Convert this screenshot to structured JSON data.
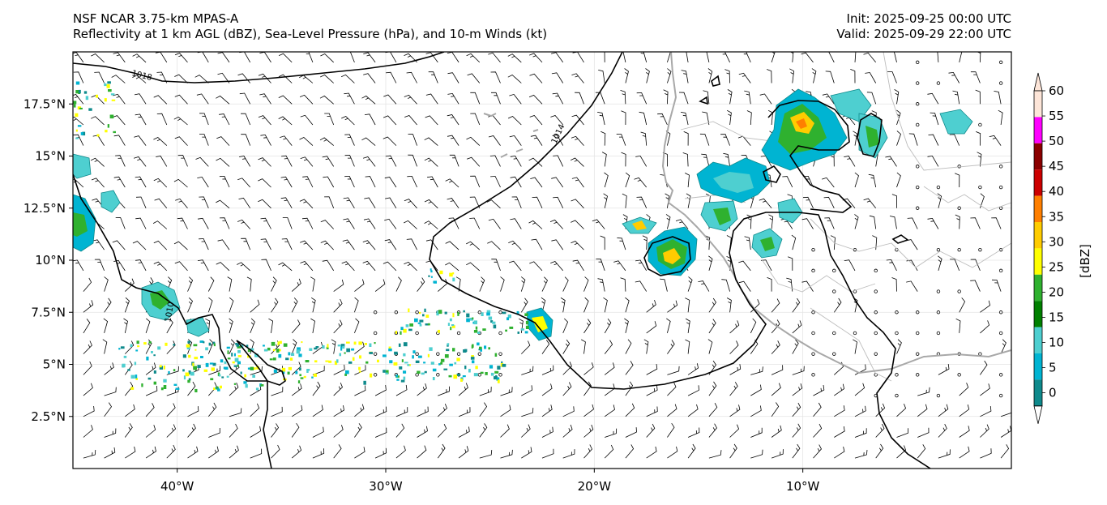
{
  "title": {
    "left_line1": "NSF NCAR 3.75-km MPAS-A",
    "left_line2": "Reflectivity at 1 km AGL (dBZ), Sea-Level Pressure (hPa), and 10-m Winds (kt)",
    "right_line1": "Init: 2025-09-25 00:00 UTC",
    "right_line2": "Valid: 2025-09-29 22:00 UTC"
  },
  "map": {
    "lon_range": [
      -45,
      0
    ],
    "lat_range": [
      0,
      20
    ],
    "lat_ticks": [
      {
        "value": 17.5,
        "label": "17.5°N"
      },
      {
        "value": 15,
        "label": "15°N"
      },
      {
        "value": 12.5,
        "label": "12.5°N"
      },
      {
        "value": 10,
        "label": "10°N"
      },
      {
        "value": 7.5,
        "label": "7.5°N"
      },
      {
        "value": 5,
        "label": "5°N"
      },
      {
        "value": 2.5,
        "label": "2.5°N"
      }
    ],
    "lon_ticks": [
      {
        "value": -40,
        "label": "40°W"
      },
      {
        "value": -30,
        "label": "30°W"
      },
      {
        "value": -20,
        "label": "20°W"
      },
      {
        "value": -10,
        "label": "10°W"
      }
    ],
    "contour_labels": [
      "1018",
      "1014",
      "1010"
    ],
    "colors": {
      "contour": "#000000",
      "coast": "#a8a8a8",
      "border": "#bdbdbd",
      "barb": "#000000"
    }
  },
  "colorbar": {
    "label": "[dBZ]",
    "ticks": [
      "0",
      "5",
      "10",
      "15",
      "20",
      "25",
      "30",
      "35",
      "40",
      "45",
      "50",
      "55",
      "60"
    ],
    "colors": [
      "#ffffff",
      "#0f8a8c",
      "#00b4d2",
      "#4ecfd0",
      "#008000",
      "#2fb12f",
      "#ffff00",
      "#ffcc00",
      "#ff7f00",
      "#cc0000",
      "#8b0000",
      "#ff00ff",
      "#fde5d8"
    ]
  }
}
